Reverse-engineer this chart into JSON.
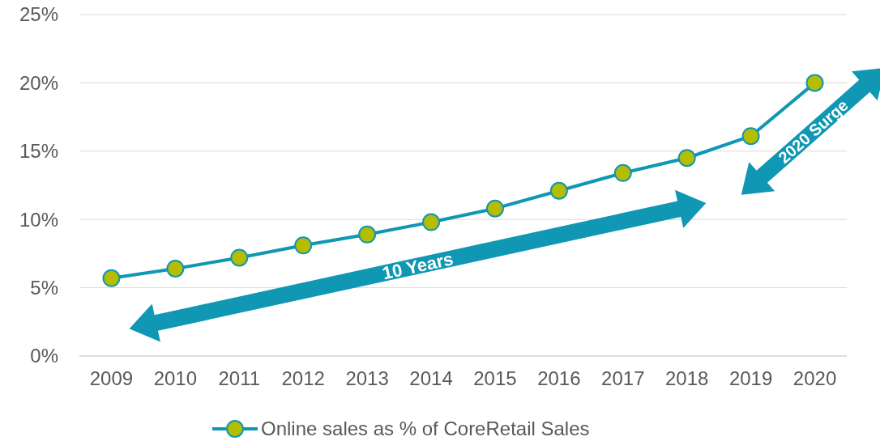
{
  "chart_data": {
    "type": "line",
    "categories": [
      "2009",
      "2010",
      "2011",
      "2012",
      "2013",
      "2014",
      "2015",
      "2016",
      "2017",
      "2018",
      "2019",
      "2020"
    ],
    "series": [
      {
        "name": "Online sales as % of CoreRetail Sales",
        "color": "#0f97b3",
        "values": [
          5.7,
          6.4,
          7.2,
          8.1,
          8.9,
          9.8,
          10.8,
          12.1,
          13.4,
          14.5,
          16.1,
          20.0
        ]
      }
    ],
    "ylim": [
      0,
      25
    ],
    "yticks": [
      {
        "value": 0,
        "label": "0%"
      },
      {
        "value": 5,
        "label": "5%"
      },
      {
        "value": 10,
        "label": "10%"
      },
      {
        "value": 15,
        "label": "15%"
      },
      {
        "value": 20,
        "label": "20%"
      },
      {
        "value": 25,
        "label": "25%"
      }
    ],
    "grid": "y",
    "legend": "bottom",
    "marker": "circle",
    "line_style": "solid",
    "annotations": [
      "10 Years",
      "2020 Surge"
    ]
  }
}
